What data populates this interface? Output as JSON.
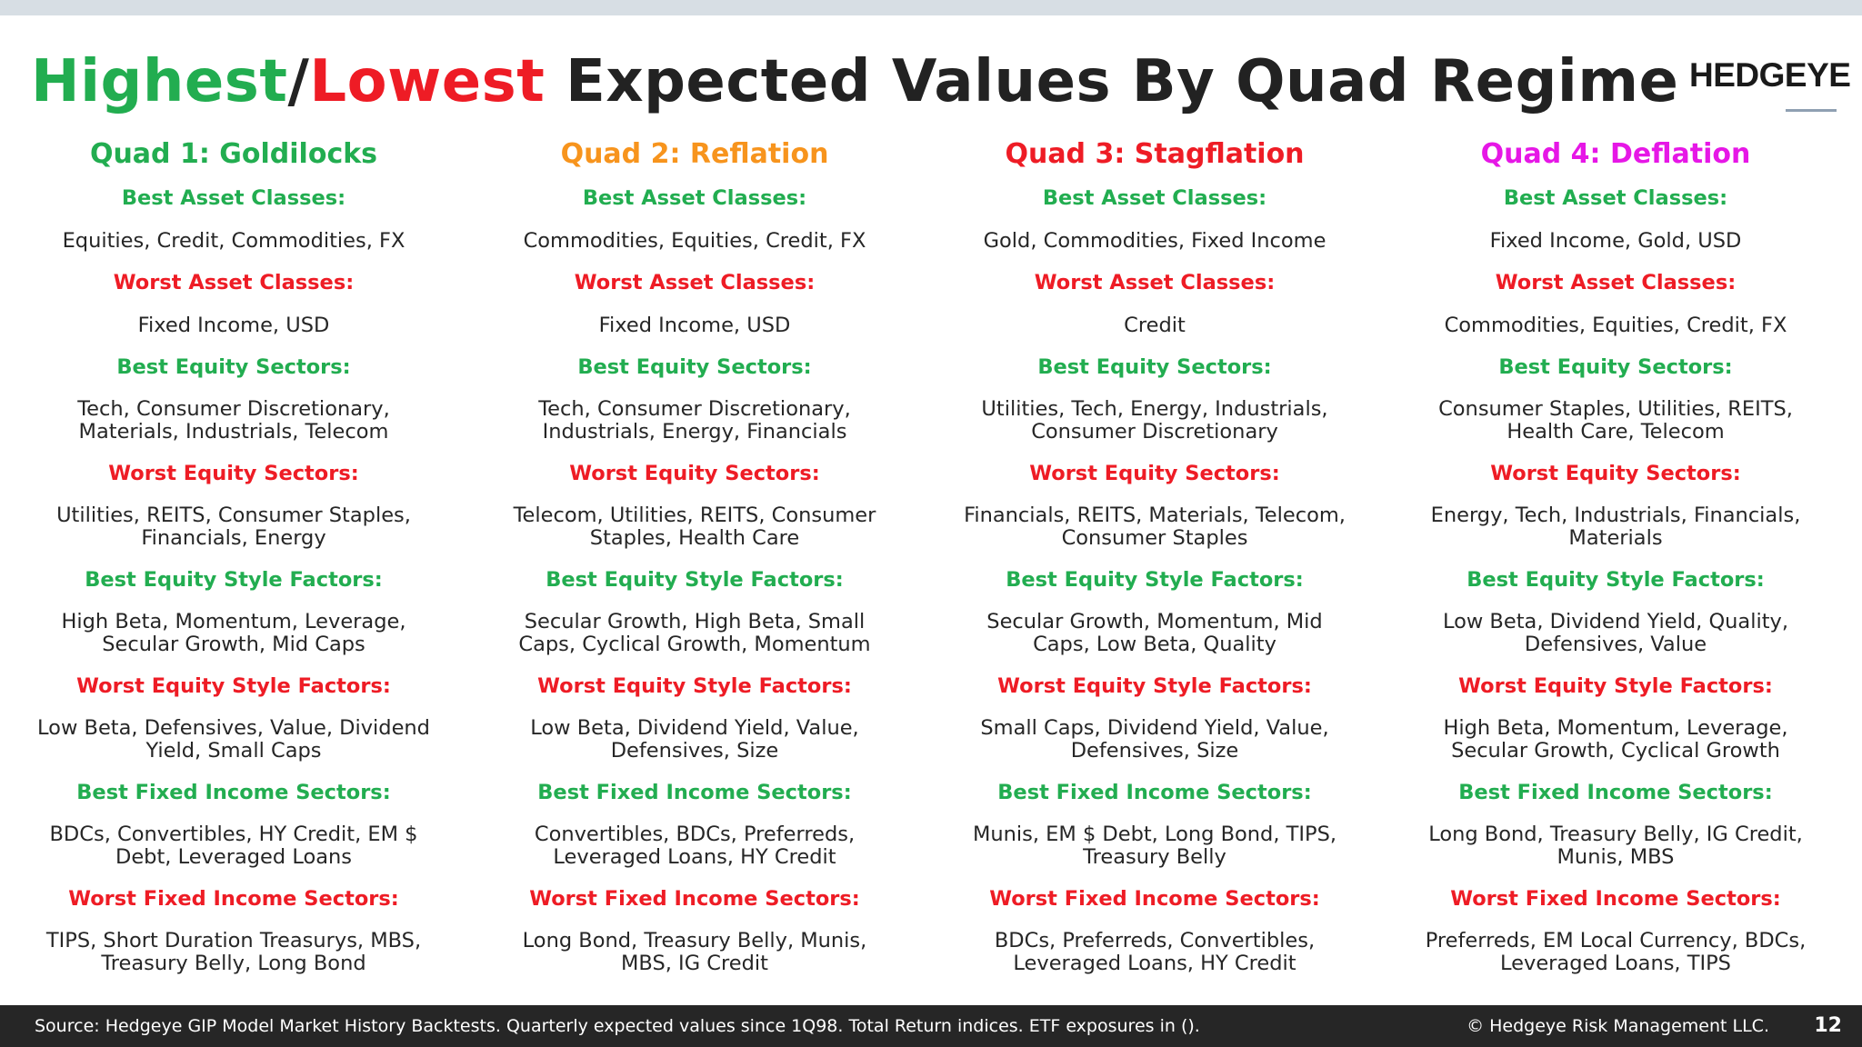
{
  "title": {
    "high": "Highest",
    "slash": "/",
    "low": "Lowest",
    "rest": " Expected Values By Quad Regime"
  },
  "logo": "HEDGEYE",
  "colors": {
    "best": "#22ad50",
    "worst": "#ee1c25",
    "q1": "#22ad50",
    "q2": "#f7941d",
    "q3": "#ee1c25",
    "q4": "#e617e6"
  },
  "labels": {
    "best_asset": "Best Asset Classes:",
    "worst_asset": "Worst Asset Classes:",
    "best_equity": "Best Equity Sectors:",
    "worst_equity": "Worst Equity Sectors:",
    "best_style": "Best Equity Style Factors:",
    "worst_style": "Worst Equity Style Factors:",
    "best_fi": "Best Fixed Income Sectors:",
    "worst_fi": "Worst Fixed Income Sectors:"
  },
  "quads": [
    {
      "name": "Quad 1: Goldilocks",
      "best_asset": "Equities, Credit, Commodities, FX",
      "worst_asset": "Fixed Income, USD",
      "best_equity": "Tech, Consumer Discretionary,\nMaterials, Industrials, Telecom",
      "worst_equity": "Utilities, REITS, Consumer Staples,\nFinancials, Energy",
      "best_style": "High Beta, Momentum, Leverage,\nSecular Growth, Mid Caps",
      "worst_style": "Low Beta, Defensives, Value, Dividend\nYield, Small Caps",
      "best_fi": "BDCs, Convertibles, HY Credit, EM $\nDebt, Leveraged Loans",
      "worst_fi": "TIPS, Short Duration Treasurys, MBS,\nTreasury Belly, Long Bond"
    },
    {
      "name": "Quad 2: Reflation",
      "best_asset": "Commodities, Equities, Credit, FX",
      "worst_asset": "Fixed Income, USD",
      "best_equity": "Tech, Consumer Discretionary,\nIndustrials, Energy, Financials",
      "worst_equity": "Telecom, Utilities, REITS, Consumer\nStaples, Health Care",
      "best_style": "Secular Growth, High Beta, Small\nCaps, Cyclical Growth, Momentum",
      "worst_style": "Low Beta, Dividend Yield, Value,\nDefensives, Size",
      "best_fi": "Convertibles, BDCs, Preferreds,\nLeveraged Loans, HY Credit",
      "worst_fi": "Long Bond, Treasury Belly, Munis,\nMBS, IG Credit"
    },
    {
      "name": "Quad 3: Stagflation",
      "best_asset": "Gold, Commodities, Fixed Income",
      "worst_asset": "Credit",
      "best_equity": "Utilities, Tech, Energy, Industrials,\nConsumer Discretionary",
      "worst_equity": "Financials, REITS, Materials, Telecom,\nConsumer Staples",
      "best_style": "Secular Growth, Momentum, Mid\nCaps, Low Beta, Quality",
      "worst_style": "Small Caps, Dividend Yield, Value,\nDefensives, Size",
      "best_fi": "Munis, EM $ Debt, Long Bond, TIPS,\nTreasury Belly",
      "worst_fi": "BDCs, Preferreds, Convertibles,\nLeveraged Loans, HY Credit"
    },
    {
      "name": "Quad 4: Deflation",
      "best_asset": "Fixed Income, Gold, USD",
      "worst_asset": "Commodities, Equities, Credit, FX",
      "best_equity": "Consumer Staples, Utilities, REITS,\nHealth Care, Telecom",
      "worst_equity": "Energy, Tech, Industrials, Financials,\nMaterials",
      "best_style": "Low Beta, Dividend Yield, Quality,\nDefensives, Value",
      "worst_style": "High Beta, Momentum, Leverage,\nSecular Growth, Cyclical Growth",
      "best_fi": "Long Bond, Treasury Belly, IG Credit,\nMunis, MBS",
      "worst_fi": "Preferreds, EM Local Currency, BDCs,\nLeveraged Loans, TIPS"
    }
  ],
  "footer": {
    "source": "Source: Hedgeye GIP Model Market History Backtests. Quarterly expected values since 1Q98.  Total Return indices. ETF exposures in ().",
    "copyright": "© Hedgeye Risk Management LLC.",
    "page": "12"
  }
}
